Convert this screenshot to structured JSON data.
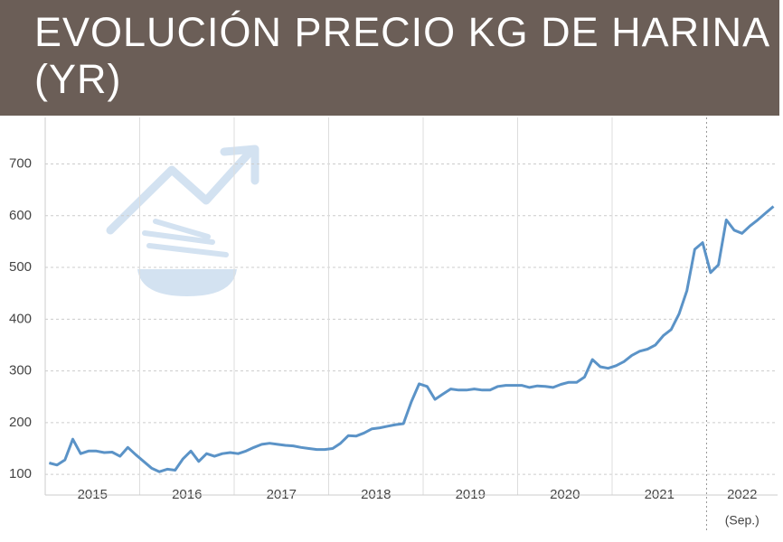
{
  "chart_data": {
    "type": "line",
    "title": "EVOLUCIÓN PRECIO KG DE HARINA (YR)",
    "x_labels": [
      "2015",
      "2016",
      "2017",
      "2018",
      "2019",
      "2020",
      "2021",
      "2022"
    ],
    "x_note": "(Sep.)",
    "series": [
      {
        "name": "Precio kg harina",
        "color": "#5b93c7",
        "values": [
          122,
          118,
          128,
          168,
          140,
          145,
          145,
          142,
          143,
          135,
          152,
          138,
          125,
          112,
          105,
          110,
          108,
          130,
          145,
          125,
          140,
          135,
          140,
          142,
          140,
          145,
          152,
          158,
          160,
          158,
          156,
          155,
          152,
          150,
          148,
          148,
          150,
          160,
          175,
          174,
          180,
          188,
          190,
          193,
          196,
          198,
          240,
          275,
          270,
          245,
          255,
          265,
          263,
          263,
          265,
          263,
          263,
          270,
          272,
          272,
          272,
          268,
          271,
          270,
          268,
          274,
          278,
          278,
          288,
          322,
          308,
          305,
          310,
          318,
          330,
          338,
          342,
          350,
          368,
          380,
          410,
          455,
          535,
          548,
          490,
          505,
          592,
          572,
          566,
          580,
          592,
          605,
          618
        ]
      }
    ],
    "ylim": [
      60,
      790
    ],
    "yticks": [
      100,
      200,
      300,
      400,
      500,
      600,
      700
    ],
    "grid": true
  }
}
